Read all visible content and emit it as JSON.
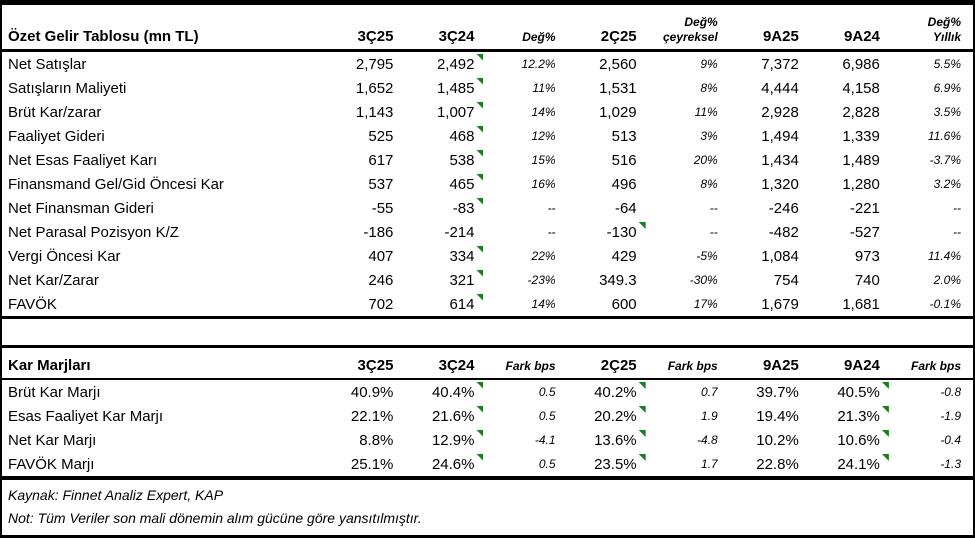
{
  "colors": {
    "flag_green": "#1e7d1e",
    "line_black": "#000000",
    "background": "#ffffff"
  },
  "income_table": {
    "title": "Özet Gelir Tablosu (mn TL)",
    "columns": [
      {
        "top": "",
        "bottom": "3Ç25",
        "style": "period"
      },
      {
        "top": "",
        "bottom": "3Ç24",
        "style": "period"
      },
      {
        "top": "",
        "bottom": "Değ%",
        "style": "pct"
      },
      {
        "top": "",
        "bottom": "2Ç25",
        "style": "period"
      },
      {
        "top": "Değ%",
        "bottom": "çeyreksel",
        "style": "pct"
      },
      {
        "top": "",
        "bottom": "9A25",
        "style": "period"
      },
      {
        "top": "",
        "bottom": "9A24",
        "style": "period"
      },
      {
        "top": "Değ%",
        "bottom": "Yıllık",
        "style": "pct"
      }
    ],
    "rows": [
      {
        "label": "Net Satışlar",
        "values": [
          "2,795",
          "2,492",
          "12.2%",
          "2,560",
          "9%",
          "7,372",
          "6,986",
          "5.5%"
        ],
        "flags": [
          1
        ]
      },
      {
        "label": "Satışların Maliyeti",
        "values": [
          "1,652",
          "1,485",
          "11%",
          "1,531",
          "8%",
          "4,444",
          "4,158",
          "6.9%"
        ],
        "flags": [
          1
        ]
      },
      {
        "label": "Brüt Kar/zarar",
        "values": [
          "1,143",
          "1,007",
          "14%",
          "1,029",
          "11%",
          "2,928",
          "2,828",
          "3.5%"
        ],
        "flags": [
          1
        ]
      },
      {
        "label": "Faaliyet Gideri",
        "values": [
          "525",
          "468",
          "12%",
          "513",
          "3%",
          "1,494",
          "1,339",
          "11.6%"
        ],
        "flags": [
          1
        ]
      },
      {
        "label": "Net Esas Faaliyet Karı",
        "values": [
          "617",
          "538",
          "15%",
          "516",
          "20%",
          "1,434",
          "1,489",
          "-3.7%"
        ],
        "flags": [
          1
        ]
      },
      {
        "label": "Finansmand Gel/Gid Öncesi Kar",
        "values": [
          "537",
          "465",
          "16%",
          "496",
          "8%",
          "1,320",
          "1,280",
          "3.2%"
        ],
        "flags": [
          1
        ]
      },
      {
        "label": "Net Finansman Gideri",
        "values": [
          "-55",
          "-83",
          "--",
          "-64",
          "--",
          "-246",
          "-221",
          "--"
        ],
        "flags": [
          1
        ]
      },
      {
        "label": "Net Parasal Pozisyon K/Z",
        "values": [
          "-186",
          "-214",
          "--",
          "-130",
          "--",
          "-482",
          "-527",
          "--"
        ],
        "flags": [
          3
        ]
      },
      {
        "label": "Vergi Öncesi Kar",
        "values": [
          "407",
          "334",
          "22%",
          "429",
          "-5%",
          "1,084",
          "973",
          "11.4%"
        ],
        "flags": [
          1
        ]
      },
      {
        "label": "Net Kar/Zarar",
        "values": [
          "246",
          "321",
          "-23%",
          "349.3",
          "-30%",
          "754",
          "740",
          "2.0%"
        ],
        "flags": [
          1
        ]
      },
      {
        "label": "FAVÖK",
        "values": [
          "702",
          "614",
          "14%",
          "600",
          "17%",
          "1,679",
          "1,681",
          "-0.1%"
        ],
        "flags": [
          1
        ]
      }
    ]
  },
  "margin_table": {
    "title": "Kar Marjları",
    "columns": [
      {
        "top": "",
        "bottom": "3Ç25",
        "style": "period"
      },
      {
        "top": "",
        "bottom": "3Ç24",
        "style": "period"
      },
      {
        "top": "",
        "bottom": "Fark bps",
        "style": "pct"
      },
      {
        "top": "",
        "bottom": "2Ç25",
        "style": "period"
      },
      {
        "top": "",
        "bottom": "Fark bps",
        "style": "pct"
      },
      {
        "top": "",
        "bottom": "9A25",
        "style": "period"
      },
      {
        "top": "",
        "bottom": "9A24",
        "style": "period"
      },
      {
        "top": "",
        "bottom": "Fark bps",
        "style": "pct"
      }
    ],
    "rows": [
      {
        "label": "Brüt Kar Marjı",
        "values": [
          "40.9%",
          "40.4%",
          "0.5",
          "40.2%",
          "0.7",
          "39.7%",
          "40.5%",
          "-0.8"
        ],
        "flags": [
          1,
          3,
          6
        ]
      },
      {
        "label": "Esas Faaliyet Kar Marjı",
        "values": [
          "22.1%",
          "21.6%",
          "0.5",
          "20.2%",
          "1.9",
          "19.4%",
          "21.3%",
          "-1.9"
        ],
        "flags": [
          1,
          3,
          6
        ]
      },
      {
        "label": "Net Kar Marjı",
        "values": [
          "8.8%",
          "12.9%",
          "-4.1",
          "13.6%",
          "-4.8",
          "10.2%",
          "10.6%",
          "-0.4"
        ],
        "flags": [
          1,
          3,
          6
        ]
      },
      {
        "label": "FAVÖK Marjı",
        "values": [
          "25.1%",
          "24.6%",
          "0.5",
          "23.5%",
          "1.7",
          "22.8%",
          "24.1%",
          "-1.3"
        ],
        "flags": [
          1,
          3,
          6
        ]
      }
    ]
  },
  "footer": {
    "source": "Kaynak: Finnet Analiz Expert, KAP",
    "note": "Not: Tüm Veriler son mali dönemin alım gücüne göre yansıtılmıştır."
  }
}
